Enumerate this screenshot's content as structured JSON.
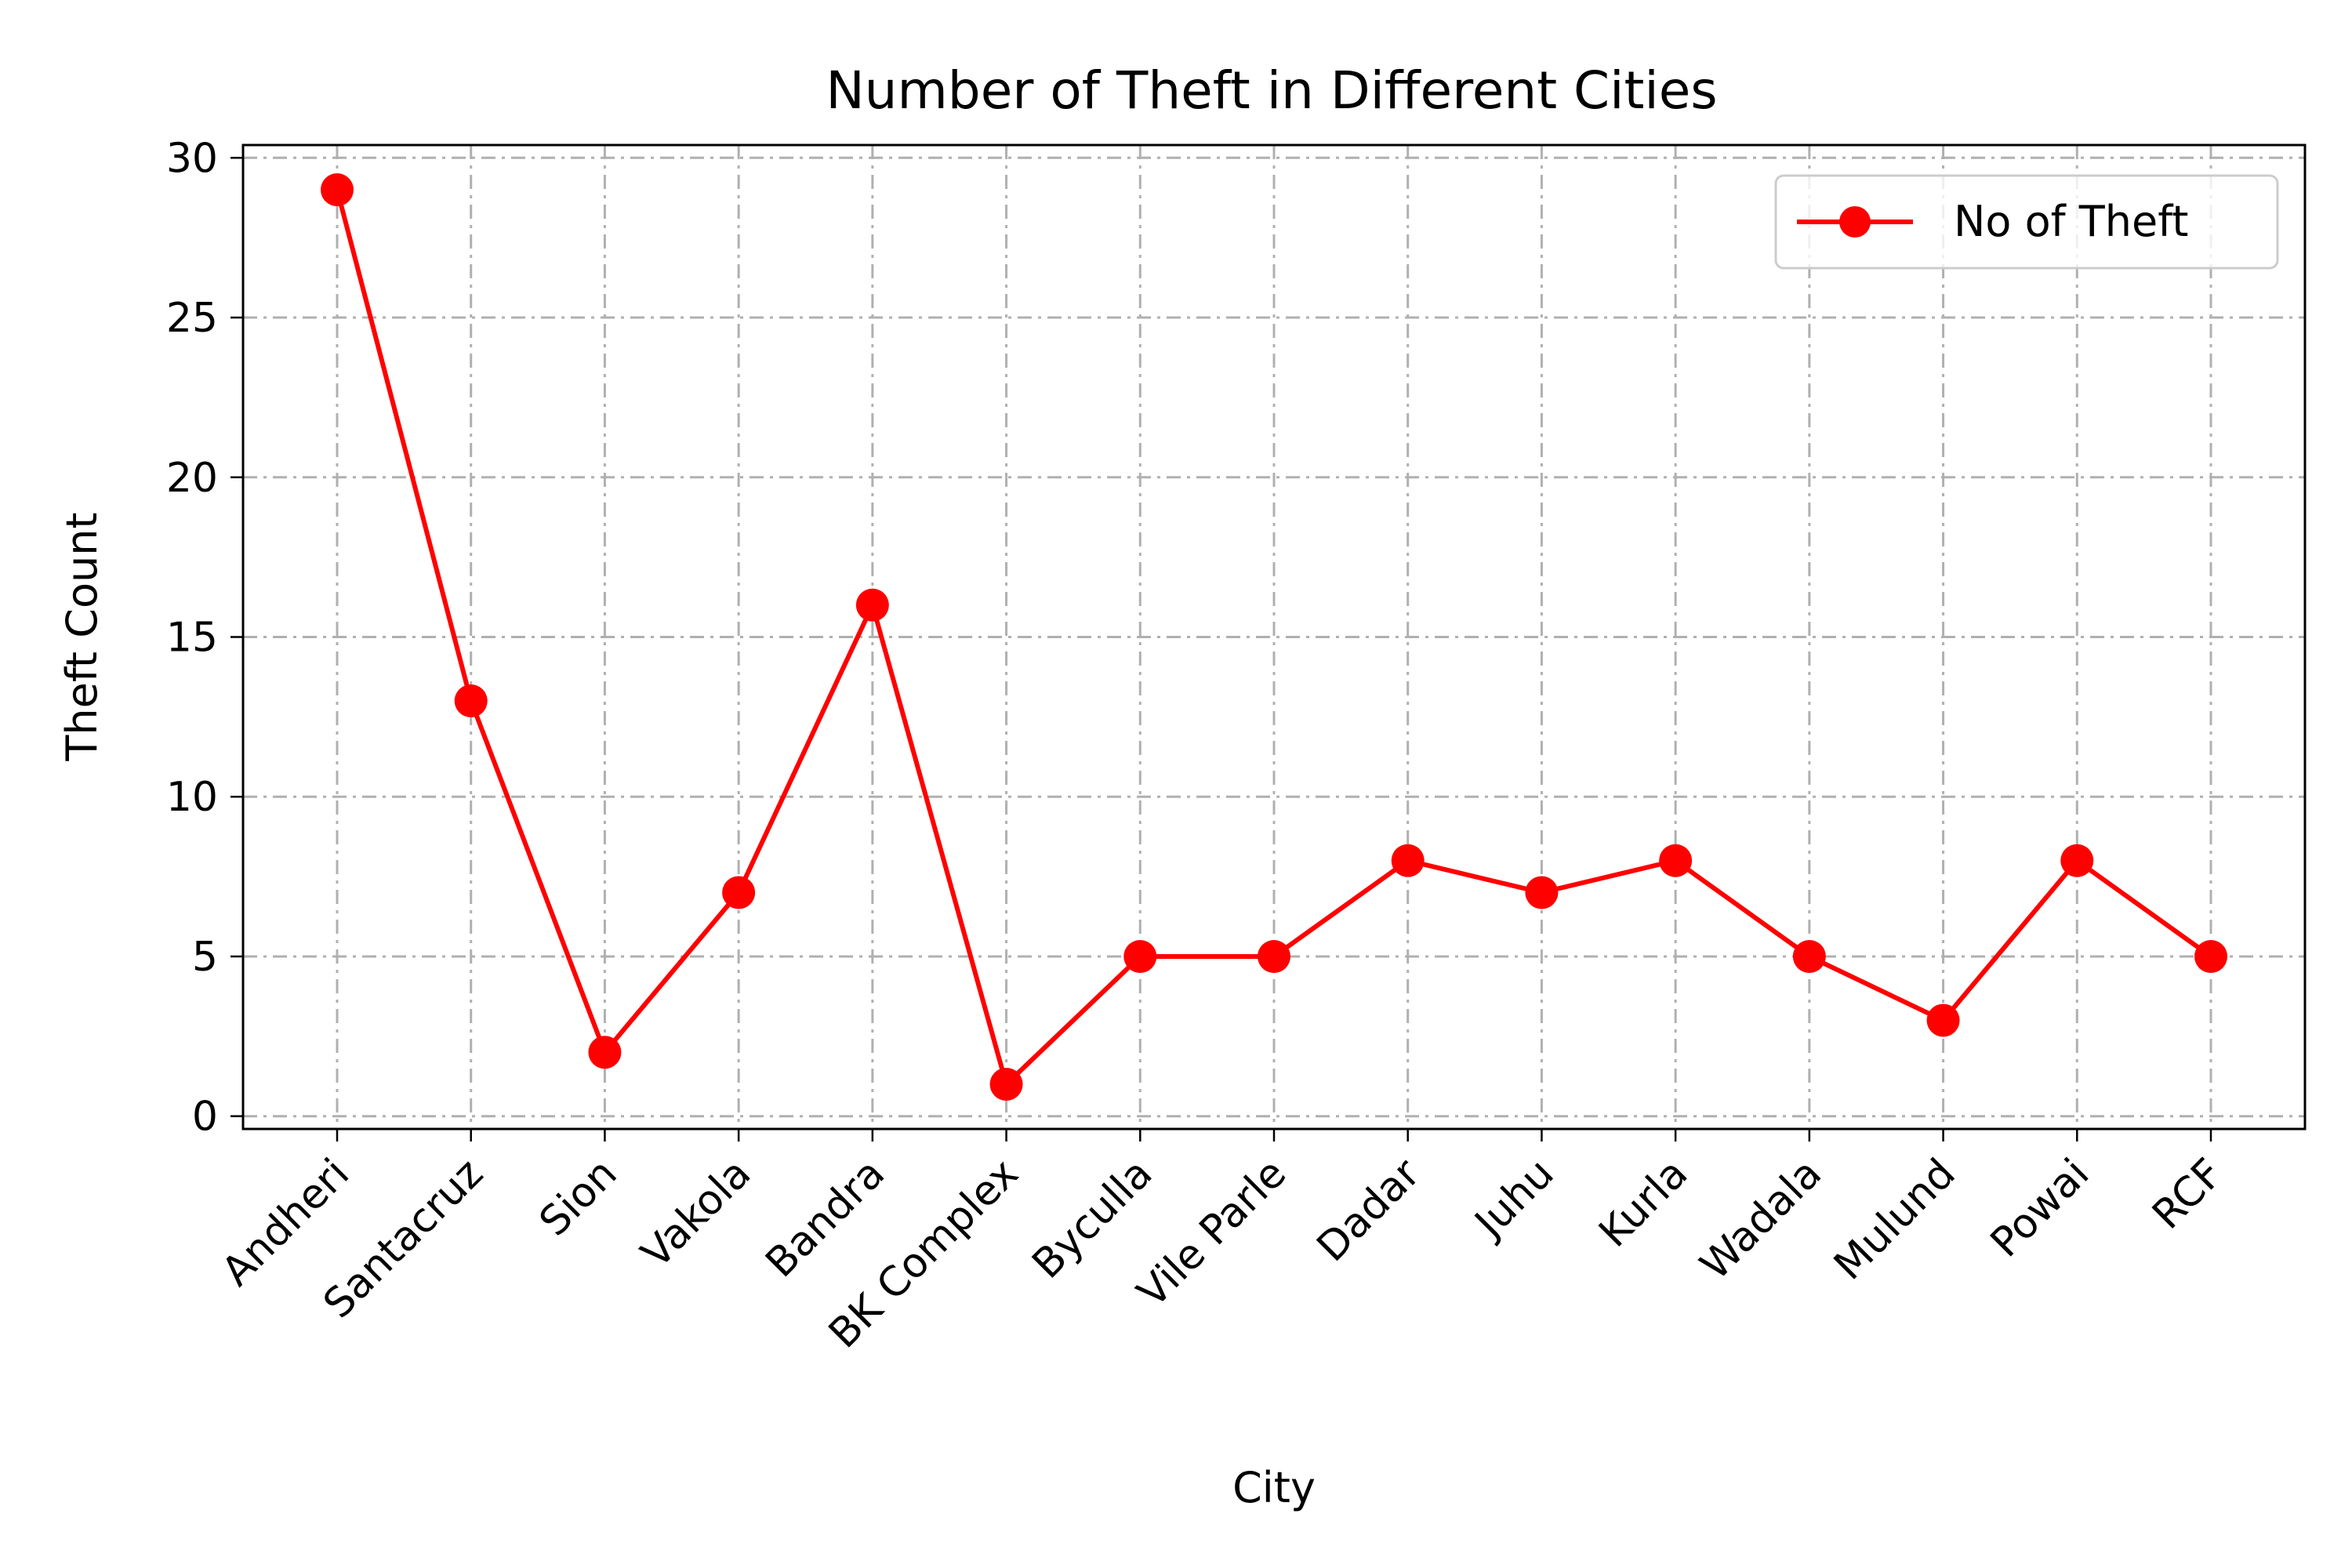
{
  "chart_data": {
    "type": "line",
    "title": "Number of Theft in Different Cities",
    "xlabel": "City",
    "ylabel": "Theft Count",
    "categories": [
      "Andheri",
      "Santacruz",
      "Sion",
      "Vakola",
      "Bandra",
      "BK Complex",
      "Byculla",
      "Vile Parle",
      "Dadar",
      "Juhu",
      "Kurla",
      "Wadala",
      "Mulund",
      "Powai",
      "RCF"
    ],
    "series": [
      {
        "name": "No of Theft",
        "values": [
          29,
          13,
          2,
          7,
          16,
          1,
          5,
          5,
          8,
          7,
          8,
          5,
          3,
          8,
          5
        ],
        "color": "#ff0000"
      }
    ],
    "yticks": [
      0,
      5,
      10,
      15,
      20,
      25,
      30
    ],
    "ylim": [
      -0.4,
      30.4
    ],
    "grid": true,
    "legend_position": "top-right",
    "marker": "circle"
  }
}
